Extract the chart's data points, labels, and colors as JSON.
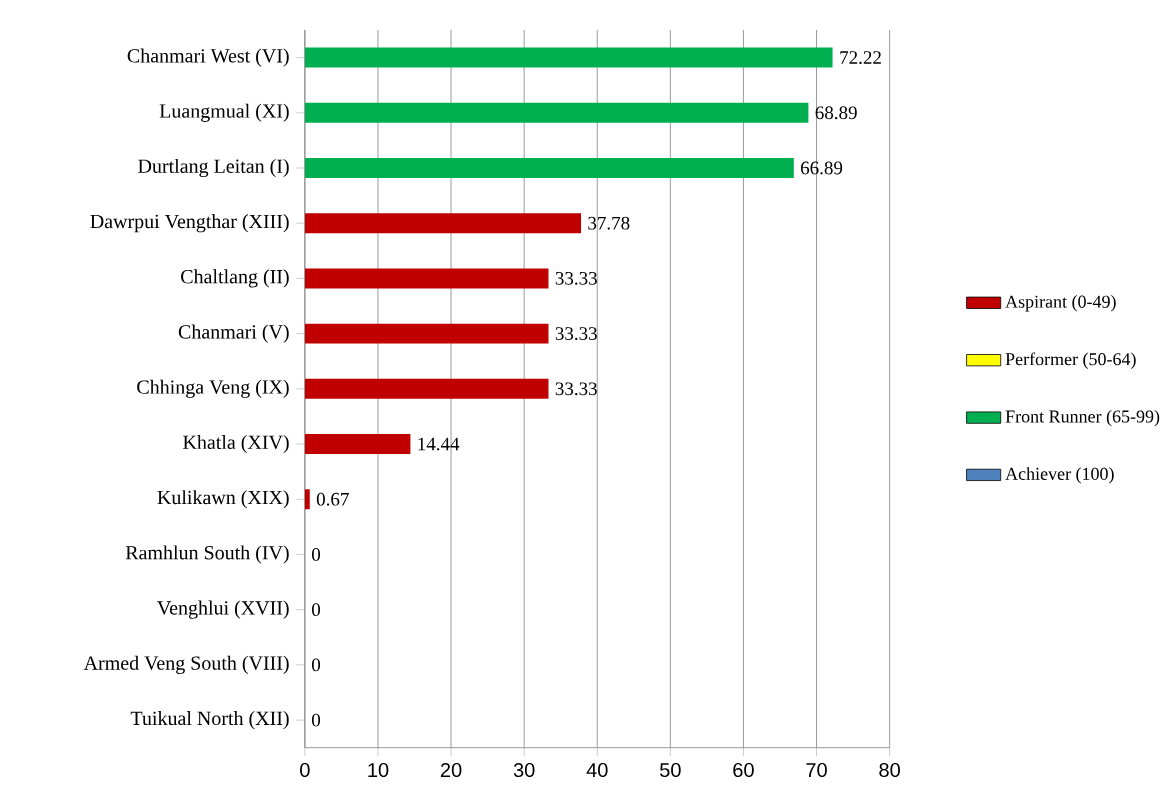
{
  "chart_data": {
    "type": "bar",
    "orientation": "horizontal",
    "stacked": true,
    "categories": [
      "Chanmari West (VI)",
      "Luangmual (XI)",
      "Durtlang Leitan (I)",
      "Dawrpui Vengthar (XIII)",
      "Chaltlang (II)",
      "Chanmari (V)",
      "Chhinga Veng (IX)",
      "Khatla (XIV)",
      "Kulikawn (XIX)",
      "Ramhlun South (IV)",
      "Venghlui (XVII)",
      "Armed Veng South (VIII)",
      "Tuikual North (XII)"
    ],
    "series": [
      {
        "name": "Aspirant (0-49)",
        "color": "#c00000",
        "values": [
          0,
          0,
          0,
          37.78,
          33.33,
          33.33,
          33.33,
          14.44,
          0.67,
          0,
          0,
          0,
          0
        ],
        "value_labels": [
          null,
          null,
          null,
          "37.78",
          "33.33",
          "33.33",
          "33.33",
          "14.44",
          "0.67",
          "0",
          "0",
          "0",
          "0"
        ]
      },
      {
        "name": "Performer (50-64)",
        "color": "#ffff00",
        "values": [
          0,
          0,
          0,
          0,
          0,
          0,
          0,
          0,
          0,
          0,
          0,
          0,
          0
        ]
      },
      {
        "name": "Front Runner (65-99)",
        "color": "#00b050",
        "values": [
          72.22,
          68.89,
          66.89,
          0,
          0,
          0,
          0,
          0,
          0,
          0,
          0,
          0,
          0
        ],
        "value_labels": [
          "72.22",
          "68.89",
          "66.89",
          null,
          null,
          null,
          null,
          null,
          null,
          null,
          null,
          null,
          null
        ]
      },
      {
        "name": "Achiever (100)",
        "color": "#4f81bd",
        "values": [
          0,
          0,
          0,
          0,
          0,
          0,
          0,
          0,
          0,
          0,
          0,
          0,
          0
        ]
      }
    ],
    "xlim": [
      0,
      80
    ],
    "xticks": [
      0,
      10,
      20,
      30,
      40,
      50,
      60,
      70,
      80
    ],
    "grid": "x",
    "legend": "right"
  }
}
